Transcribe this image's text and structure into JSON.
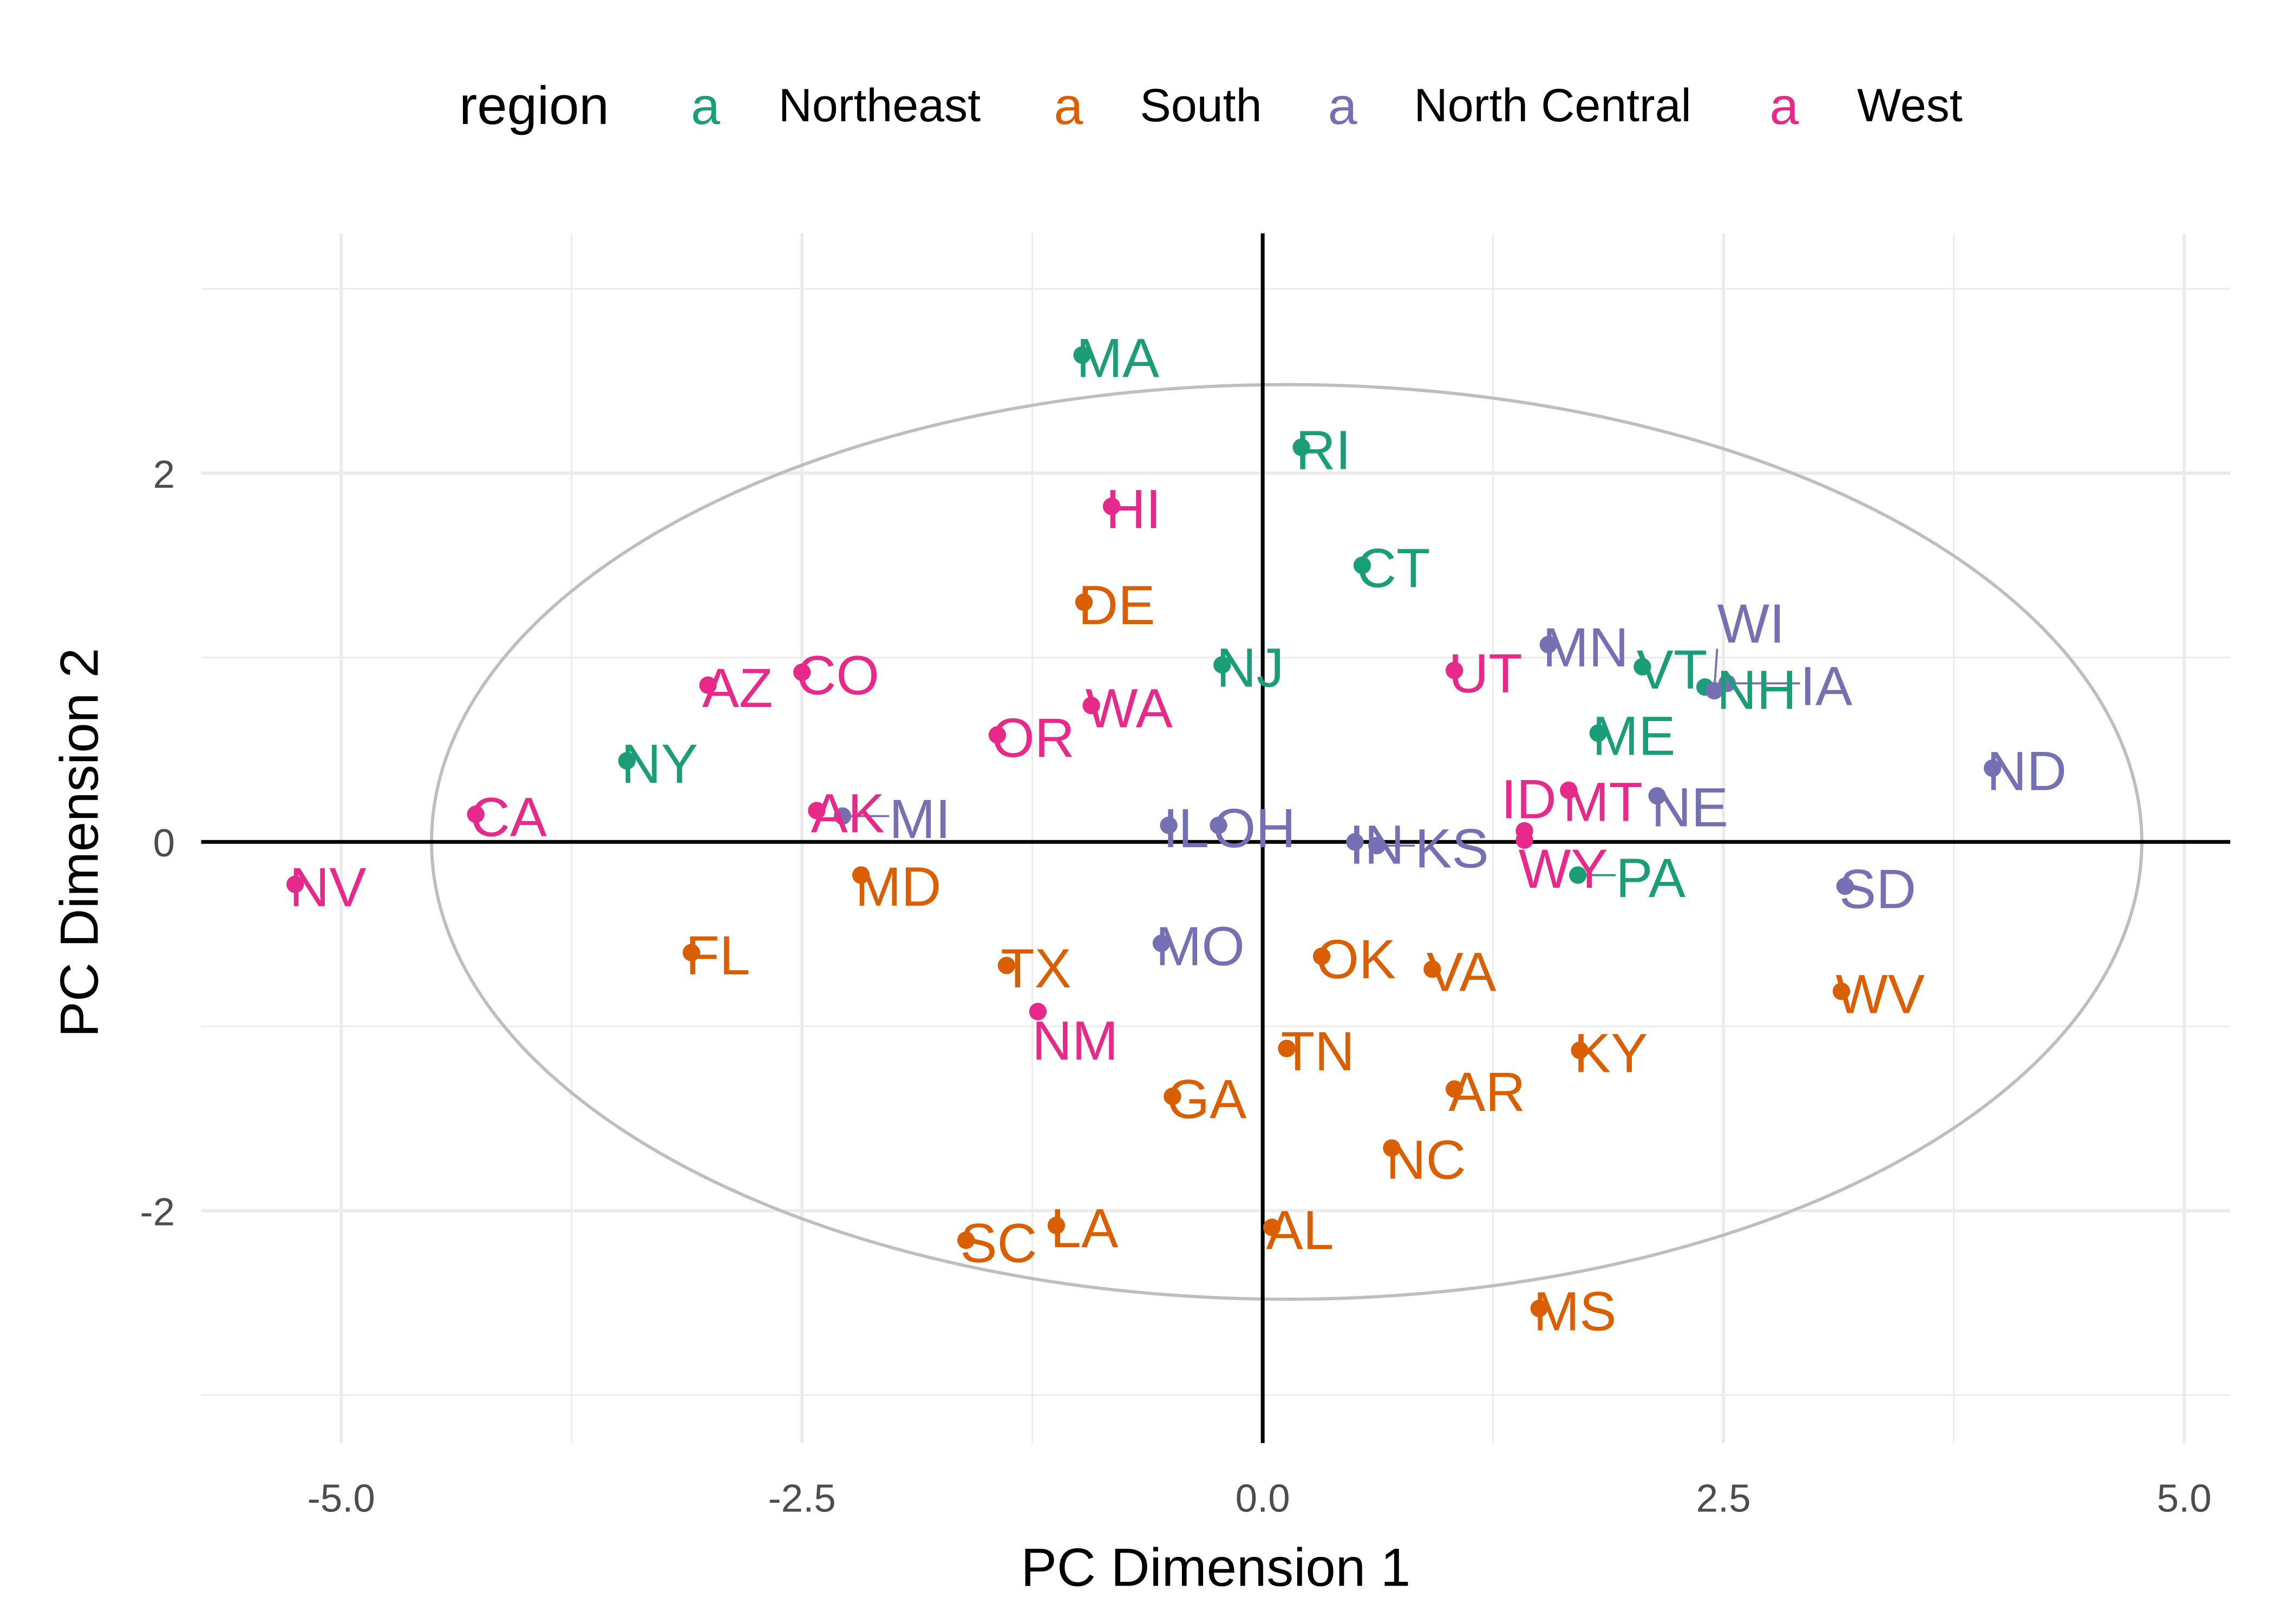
{
  "chart_data": {
    "type": "scatter",
    "xlabel": "PC Dimension 1",
    "ylabel": "PC Dimension 2",
    "xlim": [
      -5.76,
      5.25
    ],
    "ylim": [
      -3.26,
      3.3
    ],
    "x_ticks": [
      -5.0,
      -2.5,
      0.0,
      2.5,
      5.0
    ],
    "x_tick_labels": [
      "-5.0",
      "-2.5",
      "0.0",
      "2.5",
      "5.0"
    ],
    "y_ticks": [
      -2,
      0,
      2
    ],
    "y_tick_labels": [
      "-2",
      "0",
      "2"
    ],
    "grid": true,
    "reference_lines": {
      "x": 0,
      "y": 0
    },
    "ellipse": {
      "center": [
        0.13,
        0.0
      ],
      "radii": [
        4.64,
        2.48
      ],
      "color": "#BEBEBE"
    },
    "legend": {
      "title": "region",
      "placement": "top",
      "key_glyph": "a",
      "entries": [
        {
          "name": "Northeast",
          "color": "#1B9E77"
        },
        {
          "name": "South",
          "color": "#D95F02"
        },
        {
          "name": "North Central",
          "color": "#7570B3"
        },
        {
          "name": "West",
          "color": "#E7298A"
        }
      ]
    },
    "points": [
      {
        "label": "MA",
        "region": "Northeast",
        "x": -0.98,
        "y": 2.64
      },
      {
        "label": "RI",
        "region": "Northeast",
        "x": 0.21,
        "y": 2.14
      },
      {
        "label": "HI",
        "region": "West",
        "x": -0.82,
        "y": 1.82
      },
      {
        "label": "CT",
        "region": "Northeast",
        "x": 0.54,
        "y": 1.5
      },
      {
        "label": "DE",
        "region": "South",
        "x": -0.97,
        "y": 1.3
      },
      {
        "label": "MN",
        "region": "North Central",
        "x": 1.55,
        "y": 1.07
      },
      {
        "label": "NJ",
        "region": "Northeast",
        "x": -0.22,
        "y": 0.96
      },
      {
        "label": "VT",
        "region": "Northeast",
        "x": 2.06,
        "y": 0.95
      },
      {
        "label": "UT",
        "region": "West",
        "x": 1.04,
        "y": 0.93
      },
      {
        "label": "NH",
        "region": "Northeast",
        "x": 2.4,
        "y": 0.84
      },
      {
        "label": "WI",
        "region": "North Central",
        "x": 2.45,
        "y": 0.82
      },
      {
        "label": "IA",
        "region": "North Central",
        "x": 2.52,
        "y": 0.86
      },
      {
        "label": "AZ",
        "region": "West",
        "x": -3.01,
        "y": 0.85
      },
      {
        "label": "CO",
        "region": "West",
        "x": -2.5,
        "y": 0.92
      },
      {
        "label": "WA",
        "region": "West",
        "x": -0.93,
        "y": 0.74
      },
      {
        "label": "ME",
        "region": "Northeast",
        "x": 1.82,
        "y": 0.59
      },
      {
        "label": "OR",
        "region": "West",
        "x": -1.44,
        "y": 0.58
      },
      {
        "label": "NY",
        "region": "Northeast",
        "x": -3.45,
        "y": 0.44
      },
      {
        "label": "ND",
        "region": "North Central",
        "x": 3.96,
        "y": 0.4
      },
      {
        "label": "MT",
        "region": "West",
        "x": 1.66,
        "y": 0.28
      },
      {
        "label": "NE",
        "region": "North Central",
        "x": 2.14,
        "y": 0.25
      },
      {
        "label": "CA",
        "region": "West",
        "x": -4.27,
        "y": 0.15
      },
      {
        "label": "AK",
        "region": "West",
        "x": -2.42,
        "y": 0.17
      },
      {
        "label": "MI",
        "region": "North Central",
        "x": -2.28,
        "y": 0.14
      },
      {
        "label": "IL",
        "region": "North Central",
        "x": -0.51,
        "y": 0.09
      },
      {
        "label": "OH",
        "region": "North Central",
        "x": -0.24,
        "y": 0.09
      },
      {
        "label": "WY",
        "region": "West",
        "x": 1.42,
        "y": 0.06
      },
      {
        "label": "ID",
        "region": "West",
        "x": 1.42,
        "y": 0.01
      },
      {
        "label": "IN",
        "region": "North Central",
        "x": 0.5,
        "y": 0.0
      },
      {
        "label": "KS",
        "region": "North Central",
        "x": 0.62,
        "y": -0.02
      },
      {
        "label": "NV",
        "region": "West",
        "x": -5.25,
        "y": -0.23
      },
      {
        "label": "MD",
        "region": "South",
        "x": -2.18,
        "y": -0.18
      },
      {
        "label": "PA",
        "region": "Northeast",
        "x": 1.71,
        "y": -0.18
      },
      {
        "label": "SD",
        "region": "North Central",
        "x": 3.16,
        "y": -0.24
      },
      {
        "label": "MO",
        "region": "North Central",
        "x": -0.55,
        "y": -0.55
      },
      {
        "label": "FL",
        "region": "South",
        "x": -3.1,
        "y": -0.6
      },
      {
        "label": "OK",
        "region": "South",
        "x": 0.32,
        "y": -0.62
      },
      {
        "label": "TX",
        "region": "South",
        "x": -1.39,
        "y": -0.67
      },
      {
        "label": "VA",
        "region": "South",
        "x": 0.92,
        "y": -0.69
      },
      {
        "label": "WV",
        "region": "South",
        "x": 3.14,
        "y": -0.81
      },
      {
        "label": "NM",
        "region": "West",
        "x": -1.22,
        "y": -0.92
      },
      {
        "label": "TN",
        "region": "South",
        "x": 0.13,
        "y": -1.12
      },
      {
        "label": "KY",
        "region": "South",
        "x": 1.72,
        "y": -1.13
      },
      {
        "label": "AR",
        "region": "South",
        "x": 1.04,
        "y": -1.34
      },
      {
        "label": "GA",
        "region": "South",
        "x": -0.49,
        "y": -1.38
      },
      {
        "label": "NC",
        "region": "South",
        "x": 0.7,
        "y": -1.66
      },
      {
        "label": "LA",
        "region": "South",
        "x": -1.12,
        "y": -2.08
      },
      {
        "label": "AL",
        "region": "South",
        "x": 0.05,
        "y": -2.09
      },
      {
        "label": "SC",
        "region": "South",
        "x": -1.61,
        "y": -2.16
      },
      {
        "label": "MS",
        "region": "South",
        "x": 1.5,
        "y": -2.53
      }
    ]
  }
}
